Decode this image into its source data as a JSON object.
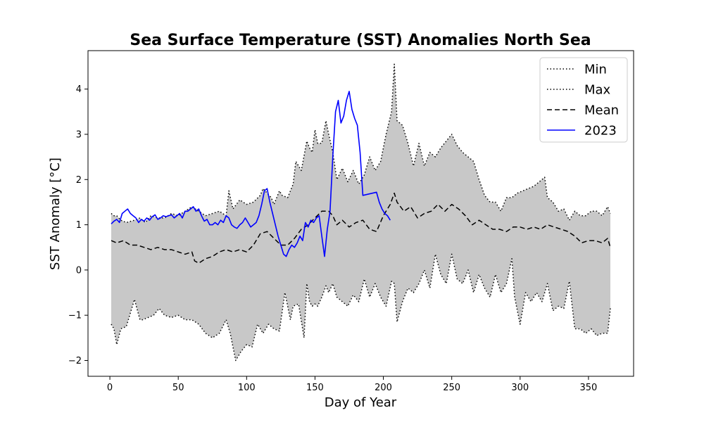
{
  "chart_data": {
    "type": "line",
    "title": "Sea Surface Temperature (SST) Anomalies North Sea",
    "xlabel": "Day of Year",
    "ylabel": "SST Anomaly [°C]",
    "xlim": [
      -16,
      383
    ],
    "ylim": [
      -2.35,
      4.85
    ],
    "xticks": [
      0,
      50,
      100,
      150,
      200,
      250,
      300,
      350
    ],
    "yticks": [
      -2,
      -1,
      0,
      1,
      2,
      3,
      4
    ],
    "ytick_labels": [
      "−2",
      "−1",
      "0",
      "1",
      "2",
      "3",
      "4"
    ],
    "legend_position": "top-right",
    "band_color": "#c8c8c8",
    "series": [
      {
        "name": "Min",
        "style": "dotted",
        "color": "#000000",
        "x": [
          1,
          3,
          5,
          8,
          12,
          18,
          22,
          24,
          28,
          32,
          36,
          40,
          45,
          50,
          55,
          60,
          65,
          70,
          75,
          80,
          85,
          88,
          92,
          96,
          100,
          104,
          108,
          112,
          116,
          120,
          124,
          128,
          132,
          134,
          138,
          142,
          144,
          146,
          148,
          150,
          152,
          155,
          158,
          160,
          163,
          166,
          170,
          174,
          178,
          182,
          186,
          190,
          194,
          198,
          202,
          206,
          208,
          210,
          214,
          218,
          222,
          226,
          230,
          234,
          238,
          242,
          246,
          250,
          254,
          258,
          262,
          266,
          270,
          274,
          278,
          282,
          286,
          290,
          294,
          296,
          300,
          304,
          308,
          312,
          316,
          320,
          324,
          328,
          332,
          336,
          340,
          344,
          348,
          352,
          356,
          360,
          364,
          366
        ],
        "y": [
          -1.2,
          -1.3,
          -1.65,
          -1.3,
          -1.25,
          -0.65,
          -1.1,
          -1.1,
          -1.05,
          -1.0,
          -0.85,
          -1.0,
          -1.05,
          -1.0,
          -1.1,
          -1.1,
          -1.2,
          -1.4,
          -1.5,
          -1.4,
          -1.1,
          -1.4,
          -2.0,
          -1.8,
          -1.65,
          -1.7,
          -1.2,
          -1.4,
          -1.2,
          -1.3,
          -1.35,
          -0.5,
          -1.1,
          -0.8,
          -0.75,
          -1.5,
          -0.3,
          -0.7,
          -0.8,
          -0.75,
          -0.8,
          -0.6,
          -0.35,
          -0.5,
          -0.3,
          -0.6,
          -0.7,
          -0.8,
          -0.55,
          -0.7,
          -0.2,
          -0.6,
          -0.3,
          -0.6,
          -0.8,
          -0.25,
          -0.3,
          -1.15,
          -0.7,
          -0.4,
          -0.5,
          -0.3,
          0.0,
          -0.4,
          0.35,
          -0.1,
          -0.3,
          0.35,
          -0.2,
          -0.3,
          0.0,
          -0.5,
          -0.1,
          -0.4,
          -0.6,
          -0.1,
          -0.5,
          -0.3,
          0.25,
          -0.6,
          -1.2,
          -0.5,
          -0.7,
          -0.5,
          -0.7,
          -0.3,
          -0.9,
          -0.8,
          -0.85,
          -0.25,
          -1.3,
          -1.3,
          -1.4,
          -1.3,
          -1.45,
          -1.4,
          -1.4,
          -0.85
        ]
      },
      {
        "name": "Max",
        "style": "dotted",
        "color": "#000000",
        "x": [
          1,
          3,
          5,
          8,
          12,
          18,
          22,
          26,
          30,
          35,
          40,
          45,
          50,
          55,
          60,
          65,
          70,
          75,
          80,
          85,
          87,
          90,
          95,
          100,
          105,
          110,
          112,
          115,
          118,
          120,
          124,
          126,
          130,
          134,
          136,
          140,
          144,
          146,
          148,
          150,
          152,
          155,
          158,
          160,
          163,
          166,
          170,
          174,
          178,
          182,
          186,
          190,
          194,
          198,
          202,
          206,
          208,
          210,
          214,
          218,
          222,
          226,
          230,
          234,
          238,
          242,
          246,
          250,
          254,
          258,
          262,
          266,
          270,
          274,
          278,
          282,
          286,
          290,
          294,
          298,
          302,
          306,
          310,
          314,
          318,
          320,
          324,
          328,
          332,
          336,
          340,
          344,
          348,
          352,
          356,
          360,
          364,
          366
        ],
        "y": [
          1.25,
          1.2,
          1.2,
          1.1,
          1.05,
          1.1,
          1.15,
          1.05,
          1.2,
          1.15,
          1.15,
          1.25,
          1.2,
          1.3,
          1.4,
          1.3,
          1.2,
          1.25,
          1.3,
          1.2,
          1.75,
          1.35,
          1.55,
          1.45,
          1.5,
          1.65,
          1.8,
          1.7,
          1.6,
          1.45,
          1.75,
          1.65,
          1.6,
          1.9,
          2.4,
          2.2,
          2.85,
          2.7,
          2.6,
          3.1,
          2.8,
          2.8,
          3.3,
          3.0,
          2.6,
          2.0,
          2.25,
          1.95,
          2.2,
          1.9,
          2.1,
          2.5,
          2.2,
          2.4,
          3.0,
          3.5,
          4.55,
          3.3,
          3.2,
          2.8,
          2.3,
          2.8,
          2.3,
          2.6,
          2.5,
          2.7,
          2.85,
          3.0,
          2.75,
          2.6,
          2.5,
          2.4,
          2.0,
          1.65,
          1.5,
          1.5,
          1.3,
          1.6,
          1.6,
          1.7,
          1.75,
          1.8,
          1.85,
          1.95,
          2.05,
          1.6,
          1.5,
          1.3,
          1.35,
          1.1,
          1.3,
          1.2,
          1.2,
          1.3,
          1.3,
          1.2,
          1.4,
          1.25
        ]
      },
      {
        "name": "Mean",
        "style": "dashed",
        "color": "#000000",
        "x": [
          1,
          5,
          10,
          15,
          20,
          25,
          30,
          35,
          40,
          45,
          50,
          55,
          60,
          62,
          65,
          70,
          75,
          80,
          85,
          90,
          95,
          100,
          105,
          110,
          115,
          120,
          125,
          130,
          135,
          140,
          145,
          150,
          155,
          160,
          163,
          166,
          170,
          175,
          180,
          185,
          190,
          195,
          200,
          205,
          208,
          210,
          215,
          220,
          225,
          230,
          235,
          240,
          245,
          250,
          255,
          260,
          265,
          270,
          275,
          280,
          285,
          290,
          295,
          300,
          305,
          310,
          315,
          320,
          325,
          330,
          335,
          340,
          345,
          350,
          355,
          360,
          364,
          366
        ],
        "y": [
          0.65,
          0.6,
          0.65,
          0.55,
          0.55,
          0.5,
          0.45,
          0.5,
          0.45,
          0.45,
          0.4,
          0.35,
          0.4,
          0.2,
          0.15,
          0.25,
          0.3,
          0.4,
          0.45,
          0.4,
          0.45,
          0.4,
          0.55,
          0.8,
          0.85,
          0.7,
          0.55,
          0.55,
          0.7,
          0.9,
          1.0,
          1.15,
          1.3,
          1.3,
          1.2,
          1.0,
          1.1,
          0.95,
          1.05,
          1.1,
          0.9,
          0.85,
          1.2,
          1.45,
          1.7,
          1.5,
          1.3,
          1.4,
          1.15,
          1.25,
          1.3,
          1.45,
          1.3,
          1.45,
          1.35,
          1.2,
          1.0,
          1.1,
          1.0,
          0.9,
          0.9,
          0.85,
          0.95,
          0.95,
          0.9,
          0.95,
          0.9,
          1.0,
          0.95,
          0.9,
          0.85,
          0.75,
          0.6,
          0.65,
          0.65,
          0.6,
          0.7,
          0.5
        ]
      },
      {
        "name": "2023",
        "style": "solid",
        "color": "#0000ff",
        "x": [
          1,
          3,
          5,
          7,
          9,
          11,
          13,
          15,
          17,
          19,
          21,
          23,
          25,
          27,
          29,
          31,
          33,
          35,
          37,
          39,
          41,
          43,
          45,
          47,
          49,
          51,
          53,
          55,
          57,
          59,
          61,
          63,
          65,
          67,
          69,
          71,
          73,
          75,
          77,
          79,
          81,
          83,
          85,
          87,
          89,
          91,
          93,
          95,
          97,
          99,
          101,
          103,
          105,
          107,
          109,
          111,
          113,
          115,
          117,
          119,
          121,
          123,
          125,
          127,
          129,
          131,
          133,
          135,
          137,
          139,
          141,
          143,
          145,
          147,
          149,
          151,
          153,
          155,
          157,
          159,
          161,
          163,
          165,
          167,
          169,
          171,
          173,
          175,
          177,
          179,
          181,
          183,
          185,
          195,
          197,
          199,
          201,
          203,
          205
        ],
        "y": [
          1.02,
          1.08,
          1.12,
          1.05,
          1.25,
          1.3,
          1.35,
          1.25,
          1.2,
          1.15,
          1.05,
          1.12,
          1.08,
          1.15,
          1.1,
          1.18,
          1.22,
          1.12,
          1.15,
          1.2,
          1.18,
          1.2,
          1.22,
          1.15,
          1.2,
          1.25,
          1.15,
          1.3,
          1.3,
          1.35,
          1.4,
          1.3,
          1.35,
          1.2,
          1.08,
          1.12,
          1.0,
          1.0,
          1.05,
          1.0,
          1.1,
          1.05,
          1.2,
          1.15,
          1.0,
          0.95,
          0.92,
          1.0,
          1.05,
          1.15,
          1.05,
          0.95,
          1.0,
          1.05,
          1.2,
          1.45,
          1.75,
          1.8,
          1.5,
          1.25,
          1.0,
          0.75,
          0.55,
          0.35,
          0.3,
          0.45,
          0.55,
          0.5,
          0.6,
          0.75,
          0.65,
          1.05,
          0.95,
          1.1,
          1.05,
          1.15,
          1.2,
          0.75,
          0.3,
          0.9,
          1.3,
          2.5,
          3.5,
          3.75,
          3.25,
          3.4,
          3.75,
          3.95,
          3.55,
          3.35,
          3.2,
          2.6,
          1.65,
          1.72,
          1.5,
          1.35,
          1.25,
          1.2,
          1.1
        ]
      }
    ]
  }
}
